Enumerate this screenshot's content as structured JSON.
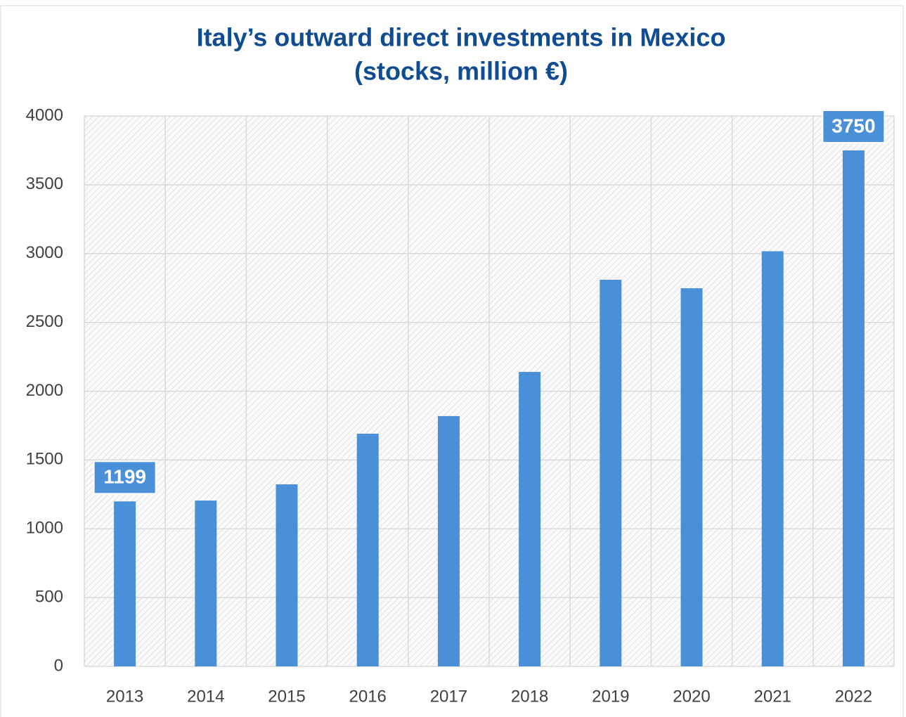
{
  "chart_data": {
    "type": "bar",
    "title": [
      "Italy’s outward direct investments in Mexico",
      "(stocks, million €)"
    ],
    "categories": [
      "2013",
      "2014",
      "2015",
      "2016",
      "2017",
      "2018",
      "2019",
      "2020",
      "2021",
      "2022"
    ],
    "values": [
      1199,
      1205,
      1323,
      1691,
      1819,
      2140,
      2810,
      2748,
      3017,
      3750
    ],
    "value_labels": [
      "1199",
      null,
      null,
      null,
      null,
      null,
      null,
      null,
      null,
      "3750"
    ],
    "color": "#4a90d9",
    "ylim": [
      0,
      4000
    ],
    "yticks": [
      0,
      500,
      1000,
      1500,
      2000,
      2500,
      3000,
      3500,
      4000
    ],
    "grid": true
  }
}
